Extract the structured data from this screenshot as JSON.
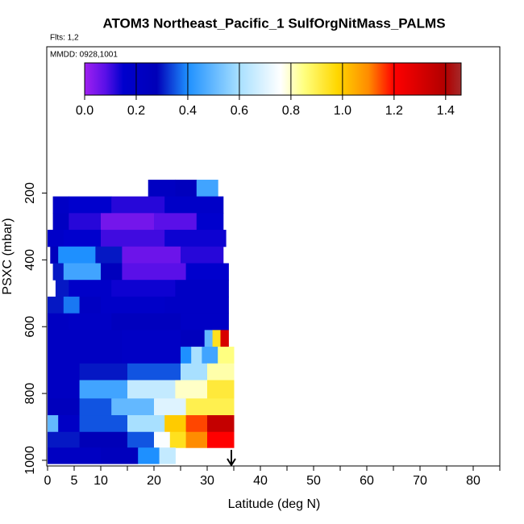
{
  "chart_data": {
    "type": "curtain",
    "title": "ATOM3 Northeast_Pacific_1 SulfOrgNitMass_PALMS",
    "flights_note": "Flts: 1,2",
    "date_note": "MMDD: 0928,1001",
    "x_label": "Latitude (deg N)",
    "y_label": "PSXC (mbar)",
    "xlim": [
      -0.15,
      85
    ],
    "ylim": [
      1017,
      -238
    ],
    "xticks": [
      0,
      5,
      10,
      20,
      30,
      40,
      50,
      60,
      70,
      80
    ],
    "xminorticks": [
      15,
      25,
      35,
      45,
      55,
      65,
      75,
      85
    ],
    "yticks": [
      200,
      400,
      600,
      800,
      1000
    ],
    "colorbar": {
      "lim": [
        0,
        1.46
      ],
      "ticks": [
        {
          "value": 0,
          "label": "0.0"
        },
        0.2,
        0.4,
        0.6,
        0.8,
        {
          "value": 1,
          "label": "1.0"
        },
        1.2,
        1.4
      ],
      "stops": [
        0,
        0.08,
        0.15,
        0.28,
        0.4,
        0.6,
        0.76,
        0.85,
        0.98,
        1.1,
        1.2,
        1.4,
        1.46
      ],
      "colors": [
        "#a020f0",
        "#5a10e8",
        "#0000cd",
        "#0000b8",
        "#1e90ff",
        "#a8e0ff",
        "#ffffff",
        "#ffff80",
        "#ffd700",
        "#ff8c00",
        "#ff0000",
        "#b00000",
        "#a52a2a"
      ]
    },
    "rows": [
      {
        "p": [
          160,
          210
        ],
        "lat": [
          18.9,
          24,
          28,
          32
        ],
        "values": [
          0.22,
          0.25,
          0.45
        ]
      },
      {
        "p": [
          210,
          260
        ],
        "lat": [
          1,
          4,
          12,
          22,
          33
        ],
        "values": [
          0.2,
          0.15,
          0.12,
          0.18
        ]
      },
      {
        "p": [
          260,
          310
        ],
        "lat": [
          1,
          4,
          10,
          20,
          28,
          33
        ],
        "values": [
          0.22,
          0.12,
          0.05,
          0.08,
          0.15
        ]
      },
      {
        "p": [
          310,
          360
        ],
        "lat": [
          0,
          3,
          10,
          22,
          33.5
        ],
        "values": [
          0.18,
          0.15,
          0.1,
          0.14
        ]
      },
      {
        "p": [
          360,
          410
        ],
        "lat": [
          0.5,
          2,
          9,
          14,
          25,
          33
        ],
        "values": [
          0.25,
          0.4,
          0.3,
          0.06,
          0.12
        ]
      },
      {
        "p": [
          410,
          460
        ],
        "lat": [
          1,
          3,
          10,
          14,
          26,
          34
        ],
        "values": [
          0.3,
          0.45,
          0.25,
          0.08,
          0.15
        ]
      },
      {
        "p": [
          460,
          510
        ],
        "lat": [
          1.5,
          4,
          12,
          24,
          34
        ],
        "values": [
          0.3,
          0.18,
          0.14,
          0.2
        ]
      },
      {
        "p": [
          510,
          560
        ],
        "lat": [
          0,
          3,
          6,
          10,
          22,
          34
        ],
        "values": [
          0.3,
          0.38,
          0.22,
          0.18,
          0.2
        ]
      },
      {
        "p": [
          560,
          610
        ],
        "lat": [
          0,
          4,
          12,
          25,
          34
        ],
        "values": [
          0.22,
          0.2,
          0.24,
          0.2
        ]
      },
      {
        "p": [
          610,
          660
        ],
        "lat": [
          0,
          14,
          25,
          29.5,
          31,
          32.5,
          34
        ],
        "values": [
          0.22,
          0.2,
          0.25,
          0.5,
          0.95,
          1.3
        ]
      },
      {
        "p": [
          660,
          710
        ],
        "lat": [
          0,
          14,
          25,
          27,
          29,
          32,
          35
        ],
        "values": [
          0.22,
          0.2,
          0.4,
          0.6,
          0.45,
          0.85
        ]
      },
      {
        "p": [
          710,
          760
        ],
        "lat": [
          0,
          6,
          15,
          25,
          30,
          35
        ],
        "values": [
          0.22,
          0.3,
          0.35,
          0.6,
          0.82
        ]
      },
      {
        "p": [
          760,
          815
        ],
        "lat": [
          0,
          6,
          15,
          24,
          30,
          35
        ],
        "values": [
          0.22,
          0.45,
          0.65,
          0.8,
          0.92
        ]
      },
      {
        "p": [
          815,
          865
        ],
        "lat": [
          0,
          6,
          12,
          20,
          26,
          35
        ],
        "values": [
          0.25,
          0.35,
          0.5,
          0.7,
          0.9
        ]
      },
      {
        "p": [
          865,
          915
        ],
        "lat": [
          0,
          2,
          6,
          15,
          22,
          26,
          30,
          35
        ],
        "values": [
          0.5,
          0.2,
          0.35,
          0.6,
          1.0,
          1.15,
          1.35
        ]
      },
      {
        "p": [
          915,
          962
        ],
        "lat": [
          0,
          6,
          15,
          20,
          23,
          26,
          30,
          35
        ],
        "values": [
          0.3,
          0.28,
          0.35,
          0.75,
          0.95,
          1.1,
          1.2
        ]
      },
      {
        "p": [
          962,
          1010
        ],
        "lat": [
          0,
          10,
          17,
          21,
          24
        ],
        "values": [
          0.22,
          0.25,
          0.4,
          0.65
        ]
      }
    ]
  }
}
